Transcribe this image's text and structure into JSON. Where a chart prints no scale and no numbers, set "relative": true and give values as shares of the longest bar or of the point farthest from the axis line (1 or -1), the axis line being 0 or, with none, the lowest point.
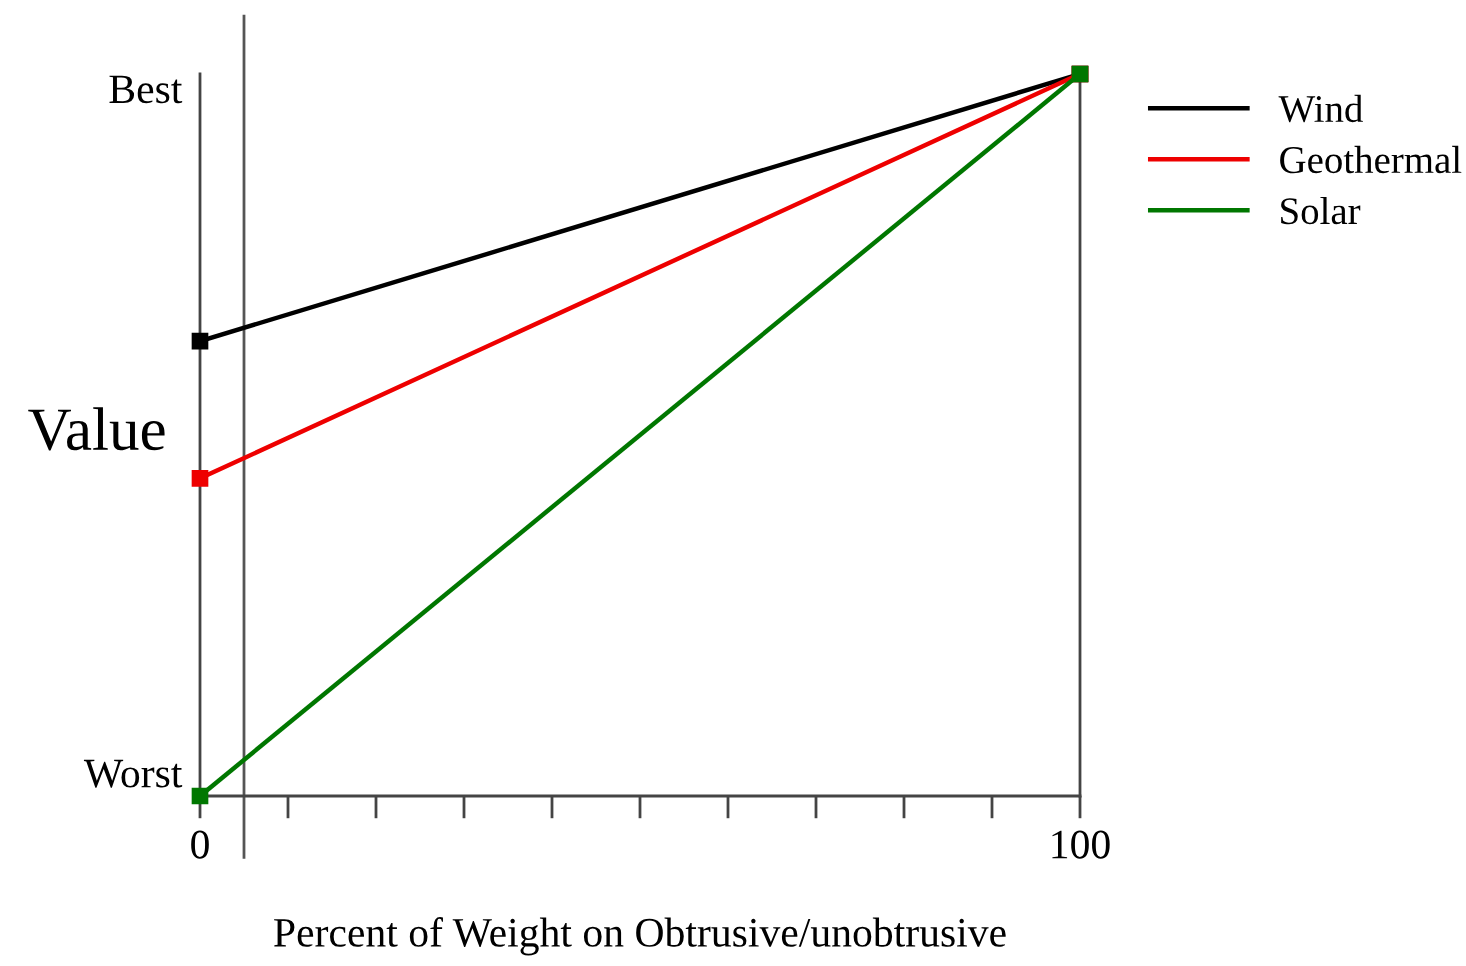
{
  "chart_data": {
    "type": "line",
    "xlabel": "Percent of Weight on Obtrusive/unobtrusive",
    "ylabel": "Value",
    "xlim": [
      0,
      100
    ],
    "xticks": [
      0,
      {
        "value": 10,
        "label": null
      },
      {
        "value": 20,
        "label": null
      },
      {
        "value": 30,
        "label": null
      },
      {
        "value": 40,
        "label": null
      },
      {
        "value": 50,
        "label": null
      },
      {
        "value": 60,
        "label": null
      },
      {
        "value": 70,
        "label": null
      },
      {
        "value": 80,
        "label": null
      },
      {
        "value": 90,
        "label": null
      },
      100
    ],
    "relative": true,
    "annotations": [
      "Worst",
      "Best"
    ],
    "x": [
      0,
      100
    ],
    "marker": "square",
    "grid": false,
    "legend": "top right",
    "series": [
      {
        "name": "Wind",
        "color": "#000000",
        "values": [
          0.63,
          1
        ]
      },
      {
        "name": "Geothermal",
        "color": "#ee0000",
        "values": [
          0.44,
          1
        ]
      },
      {
        "name": "Solar",
        "color": "#007700",
        "values": [
          0,
          1
        ]
      }
    ],
    "ref_lines": [
      {
        "axis": "x",
        "value": 5,
        "color": "#555555"
      }
    ]
  }
}
